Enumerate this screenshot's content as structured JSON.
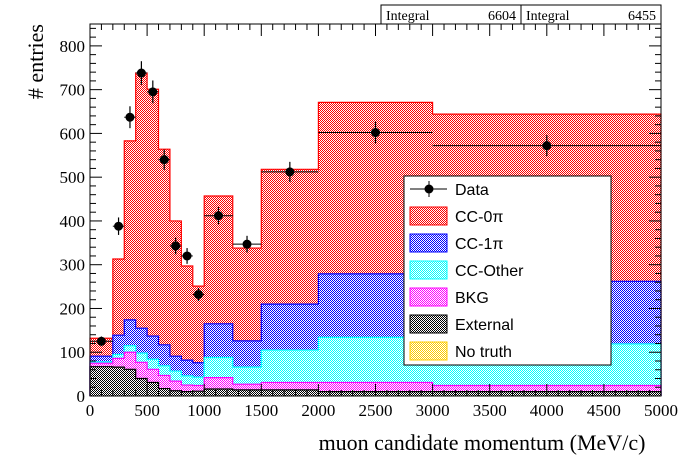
{
  "stats_boxes": [
    {
      "label": "Integral",
      "value": "6604"
    },
    {
      "label": "Integral",
      "value": "6455"
    }
  ],
  "chart_data": {
    "type": "bar",
    "subtype": "stacked-histogram-with-data-points",
    "title": "",
    "xlabel": "muon candidate momentum (MeV/c)",
    "ylabel": "# entries",
    "xlim": [
      0,
      5000
    ],
    "ylim": [
      0,
      850
    ],
    "x_ticks": [
      0,
      500,
      1000,
      1500,
      2000,
      2500,
      3000,
      3500,
      4000,
      4500,
      5000
    ],
    "y_ticks": [
      0,
      100,
      200,
      300,
      400,
      500,
      600,
      700,
      800
    ],
    "bin_edges": [
      0,
      200,
      300,
      400,
      500,
      600,
      700,
      800,
      900,
      1000,
      1250,
      1500,
      2000,
      3000,
      5000
    ],
    "legend_position": "center-right",
    "series": [
      {
        "name": "External",
        "color": "#000000",
        "values": [
          67,
          66,
          61,
          40,
          31,
          17,
          12,
          10,
          11,
          16,
          14,
          14,
          10,
          10
        ]
      },
      {
        "name": "BKG",
        "color": "#ff00ff",
        "values": [
          8,
          20,
          39,
          37,
          30,
          30,
          22,
          15,
          13,
          26,
          13,
          17,
          21,
          14
        ]
      },
      {
        "name": "CC-Other",
        "color": "#00ffff",
        "values": [
          3,
          9,
          15,
          21,
          23,
          22,
          23,
          21,
          19,
          46,
          39,
          74,
          103,
          95
        ]
      },
      {
        "name": "CC-1π",
        "color": "#0000ff",
        "values": [
          13,
          44,
          59,
          57,
          53,
          48,
          34,
          36,
          33,
          77,
          60,
          105,
          145,
          143
        ]
      },
      {
        "name": "CC-0π",
        "color": "#ff0000",
        "values": [
          41,
          174,
          409,
          583,
          564,
          447,
          309,
          215,
          175,
          292,
          212,
          308,
          392,
          382
        ]
      },
      {
        "name": "No truth",
        "color": "#ffcc00",
        "values": [
          0,
          0,
          0,
          0,
          0,
          0,
          0,
          0,
          0,
          0,
          0,
          0,
          0,
          0
        ]
      }
    ],
    "data": {
      "name": "Data",
      "x": [
        100,
        250,
        350,
        450,
        550,
        650,
        750,
        850,
        950,
        1125,
        1375,
        1750,
        2500,
        4000
      ],
      "y": [
        125,
        388,
        637,
        738,
        695,
        540,
        343,
        320,
        232,
        412,
        347,
        512,
        602,
        572
      ],
      "yerr": [
        11,
        20,
        25,
        27,
        26,
        23,
        19,
        18,
        15,
        20,
        19,
        23,
        25,
        24
      ]
    },
    "legend_order": [
      "Data",
      "CC-0π",
      "CC-1π",
      "CC-Other",
      "BKG",
      "External",
      "No truth"
    ]
  }
}
